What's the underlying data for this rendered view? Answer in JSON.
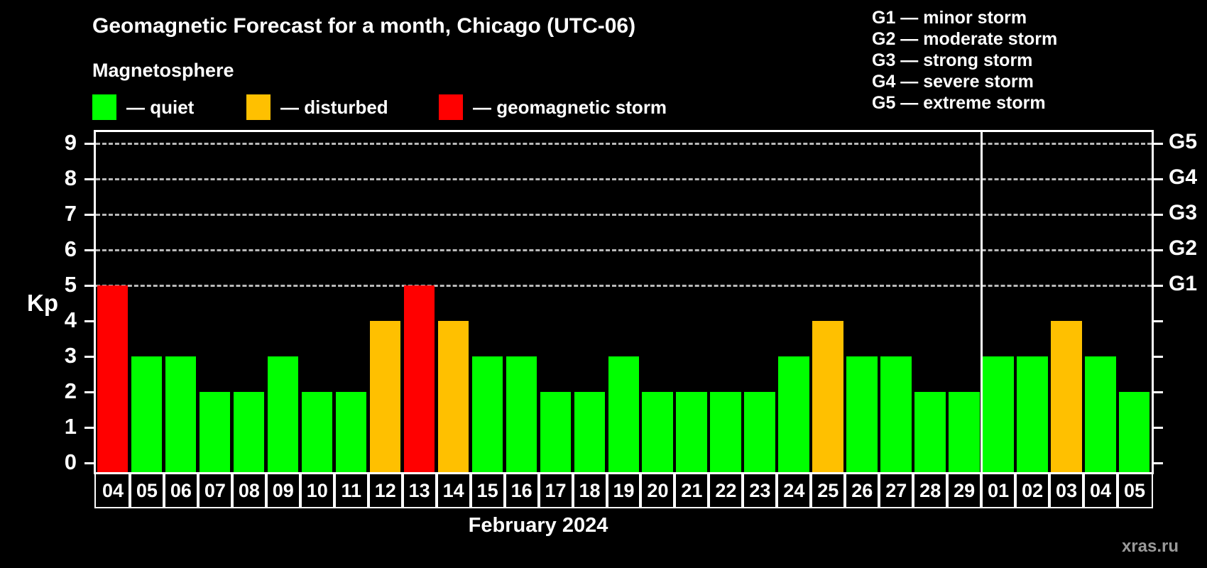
{
  "header": {
    "title": "Geomagnetic Forecast for a month, Chicago (UTC-06)",
    "subtitle": "Magnetosphere"
  },
  "legend": {
    "items": [
      {
        "name": "quiet",
        "label": "— quiet",
        "color": "#00ff00"
      },
      {
        "name": "disturbed",
        "label": "— disturbed",
        "color": "#ffc000"
      },
      {
        "name": "storm",
        "label": "— geomagnetic storm",
        "color": "#ff0000"
      }
    ]
  },
  "g_scale_legend": {
    "items": [
      {
        "label": "G1 — minor storm"
      },
      {
        "label": "G2 — moderate storm"
      },
      {
        "label": "G3 — strong storm"
      },
      {
        "label": "G4 — severe storm"
      },
      {
        "label": "G5 — extreme storm"
      }
    ]
  },
  "chart_data": {
    "type": "bar",
    "title": "Geomagnetic Forecast for a month, Chicago (UTC-06)",
    "subtitle": "Magnetosphere",
    "xlabel": "February 2024",
    "ylabel": "Kp",
    "ylim": [
      0,
      9
    ],
    "yticks": [
      0,
      1,
      2,
      3,
      4,
      5,
      6,
      7,
      8,
      9
    ],
    "gridlines_at": [
      5,
      6,
      7,
      8,
      9
    ],
    "grid": "horizontal dashed at Kp 5-9 only",
    "legend_position": "top-left",
    "right_axis": {
      "labels": [
        "G1",
        "G2",
        "G3",
        "G4",
        "G5"
      ],
      "at_values": [
        5,
        6,
        7,
        8,
        9
      ]
    },
    "categories": [
      "04",
      "05",
      "06",
      "07",
      "08",
      "09",
      "10",
      "11",
      "12",
      "13",
      "14",
      "15",
      "16",
      "17",
      "18",
      "19",
      "20",
      "21",
      "22",
      "23",
      "24",
      "25",
      "26",
      "27",
      "28",
      "29",
      "01",
      "02",
      "03",
      "04",
      "05"
    ],
    "values": [
      5,
      3,
      3,
      2,
      2,
      3,
      2,
      2,
      4,
      5,
      4,
      3,
      3,
      2,
      2,
      3,
      2,
      2,
      2,
      2,
      3,
      4,
      3,
      3,
      2,
      2,
      3,
      3,
      4,
      3,
      2
    ],
    "statuses": [
      "storm",
      "quiet",
      "quiet",
      "quiet",
      "quiet",
      "quiet",
      "quiet",
      "quiet",
      "disturbed",
      "storm",
      "disturbed",
      "quiet",
      "quiet",
      "quiet",
      "quiet",
      "quiet",
      "quiet",
      "quiet",
      "quiet",
      "quiet",
      "quiet",
      "disturbed",
      "quiet",
      "quiet",
      "quiet",
      "quiet",
      "quiet",
      "quiet",
      "disturbed",
      "quiet",
      "quiet"
    ],
    "colors": {
      "quiet": "#00ff00",
      "disturbed": "#ffc000",
      "storm": "#ff0000"
    },
    "month_separator_after_index": 25
  },
  "footer": {
    "watermark": "xras.ru"
  }
}
